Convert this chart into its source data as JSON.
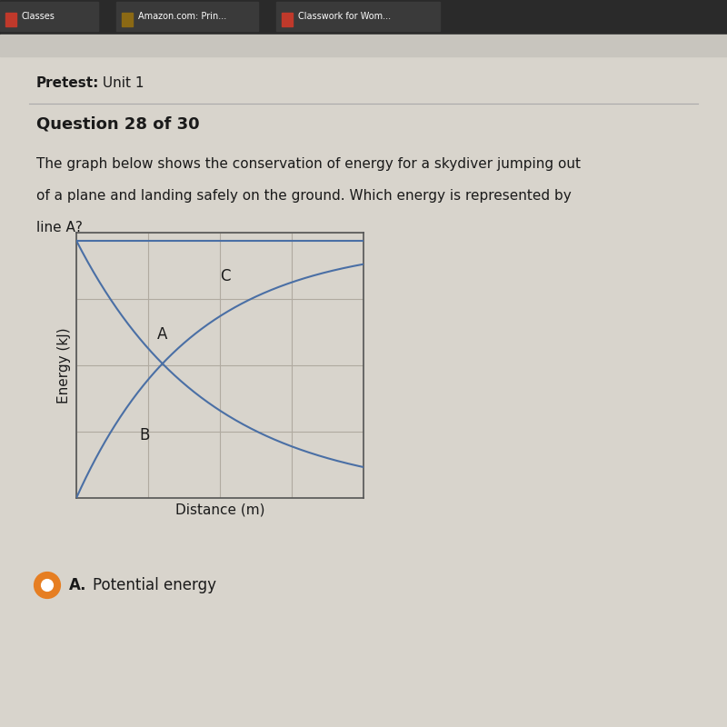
{
  "bg_color": "#d8d4cc",
  "tab_bar_color": "#2a2a2a",
  "browser_bar_color": "#c8c5be",
  "tabs": [
    {
      "label": "Classes",
      "icon_color": "#c0392b"
    },
    {
      "label": "Amazon.com: Prin...",
      "icon_color": "#8B6914"
    },
    {
      "label": "Classwork for Wom...",
      "icon_color": "#c0392b"
    }
  ],
  "pretest_label": "Pretest:",
  "pretest_unit": " Unit 1",
  "question_title": "Question 28 of 30",
  "question_body_lines": [
    "The graph below shows the conservation of energy for a skydiver jumping out",
    "of a plane and landing safely on the ground. Which energy is represented by",
    "line A?"
  ],
  "ylabel": "Energy (kJ)",
  "xlabel": "Distance (m)",
  "line_color": "#4a6fa5",
  "grid_color": "#b0aaa0",
  "label_A": "A",
  "label_B": "B",
  "label_C": "C",
  "answer_label": "A.",
  "answer_text": "Potential energy",
  "answer_dot_color": "#e67e22",
  "answer_dot_inner": "#ffffff",
  "text_color": "#1a1a1a"
}
